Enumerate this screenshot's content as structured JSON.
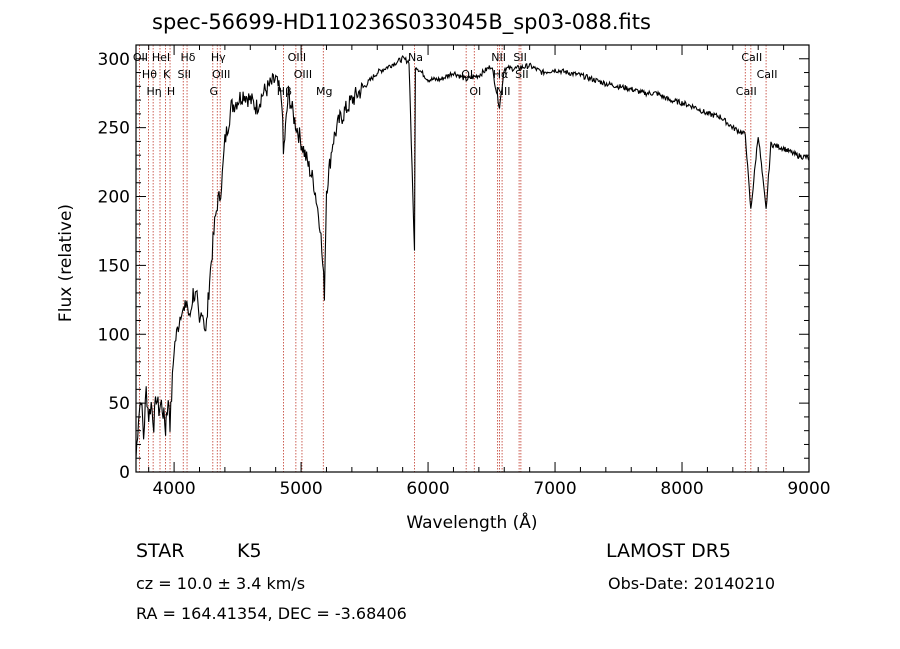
{
  "chart_data": {
    "type": "line",
    "title": "spec-56699-HD110236S033045B_sp03-088.fits",
    "xlabel": "Wavelength (Å)",
    "ylabel": "Flux (relative)",
    "xlim": [
      3700,
      9000
    ],
    "ylim": [
      0,
      310
    ],
    "xticks": [
      4000,
      5000,
      6000,
      7000,
      8000,
      9000
    ],
    "yticks": [
      0,
      50,
      100,
      150,
      200,
      250,
      300
    ],
    "grid": false,
    "series": [
      {
        "x": [
          3700,
          3720,
          3740,
          3760,
          3780,
          3800,
          3820,
          3840,
          3860,
          3880,
          3900,
          3920,
          3933,
          3940,
          3960,
          3968,
          3980,
          4000,
          4020,
          4040,
          4060,
          4080,
          4100,
          4120,
          4150,
          4180,
          4200,
          4220,
          4250,
          4280,
          4300,
          4320,
          4340,
          4360,
          4380,
          4400,
          4450,
          4500,
          4550,
          4600,
          4650,
          4700,
          4750,
          4800,
          4850,
          4861,
          4900,
          4950,
          5000,
          5050,
          5100,
          5150,
          5170,
          5184,
          5200,
          5250,
          5300,
          5400,
          5500,
          5600,
          5700,
          5800,
          5850,
          5893,
          5900,
          5950,
          6000,
          6100,
          6200,
          6300,
          6400,
          6500,
          6563,
          6600,
          6700,
          6800,
          6900,
          7000,
          7100,
          7200,
          7300,
          7400,
          7500,
          7600,
          7700,
          7800,
          7900,
          8000,
          8100,
          8200,
          8300,
          8400,
          8498,
          8542,
          8600,
          8662,
          8700,
          8800,
          8900,
          9000
        ],
        "y": [
          10,
          40,
          55,
          25,
          60,
          40,
          50,
          35,
          55,
          45,
          50,
          40,
          30,
          45,
          50,
          35,
          55,
          90,
          100,
          110,
          120,
          115,
          125,
          110,
          130,
          125,
          105,
          120,
          100,
          140,
          160,
          180,
          195,
          200,
          215,
          240,
          265,
          270,
          275,
          270,
          265,
          275,
          280,
          285,
          270,
          230,
          275,
          255,
          240,
          225,
          210,
          180,
          150,
          130,
          205,
          240,
          255,
          270,
          280,
          290,
          295,
          300,
          298,
          160,
          295,
          290,
          285,
          285,
          290,
          285,
          288,
          295,
          265,
          293,
          293,
          295,
          290,
          292,
          290,
          288,
          285,
          282,
          280,
          278,
          275,
          275,
          270,
          268,
          265,
          260,
          258,
          250,
          245,
          190,
          245,
          190,
          238,
          235,
          230,
          228
        ]
      }
    ],
    "lines": [
      {
        "x": 3727,
        "label": "OII"
      },
      {
        "x": 3798,
        "label": "Hθ"
      },
      {
        "x": 3835,
        "label": "Hη"
      },
      {
        "x": 3889,
        "label": "HeI"
      },
      {
        "x": 3933,
        "label": "K"
      },
      {
        "x": 3968,
        "label": "H"
      },
      {
        "x": 4102,
        "label": "Hδ"
      },
      {
        "x": 4072,
        "label": "SII"
      },
      {
        "x": 4305,
        "label": "G"
      },
      {
        "x": 4340,
        "label": "Hγ"
      },
      {
        "x": 4363,
        "label": "OIII"
      },
      {
        "x": 4861,
        "label": "Hβ"
      },
      {
        "x": 4959,
        "label": "OIII"
      },
      {
        "x": 5007,
        "label": "OIII"
      },
      {
        "x": 5175,
        "label": "Mg"
      },
      {
        "x": 5893,
        "label": "Na"
      },
      {
        "x": 6300,
        "label": "OI"
      },
      {
        "x": 6364,
        "label": "OI"
      },
      {
        "x": 6548,
        "label": "NII"
      },
      {
        "x": 6563,
        "label": "Hα"
      },
      {
        "x": 6583,
        "label": "NII"
      },
      {
        "x": 6717,
        "label": "SII"
      },
      {
        "x": 6731,
        "label": "SII"
      },
      {
        "x": 8498,
        "label": "CaII"
      },
      {
        "x": 8542,
        "label": "CaII"
      },
      {
        "x": 8662,
        "label": "CaII"
      }
    ]
  },
  "info": {
    "object_class": "STAR",
    "subclass": "K5",
    "survey": "LAMOST DR5",
    "cz": "cz = 10.0 ± 3.4 km/s",
    "obs_date": "Obs-Date: 20140210",
    "coords": "RA = 164.41354, DEC =  -3.68406"
  },
  "colors": {
    "line_marker": "#c0392b",
    "spectrum": "#000000"
  }
}
